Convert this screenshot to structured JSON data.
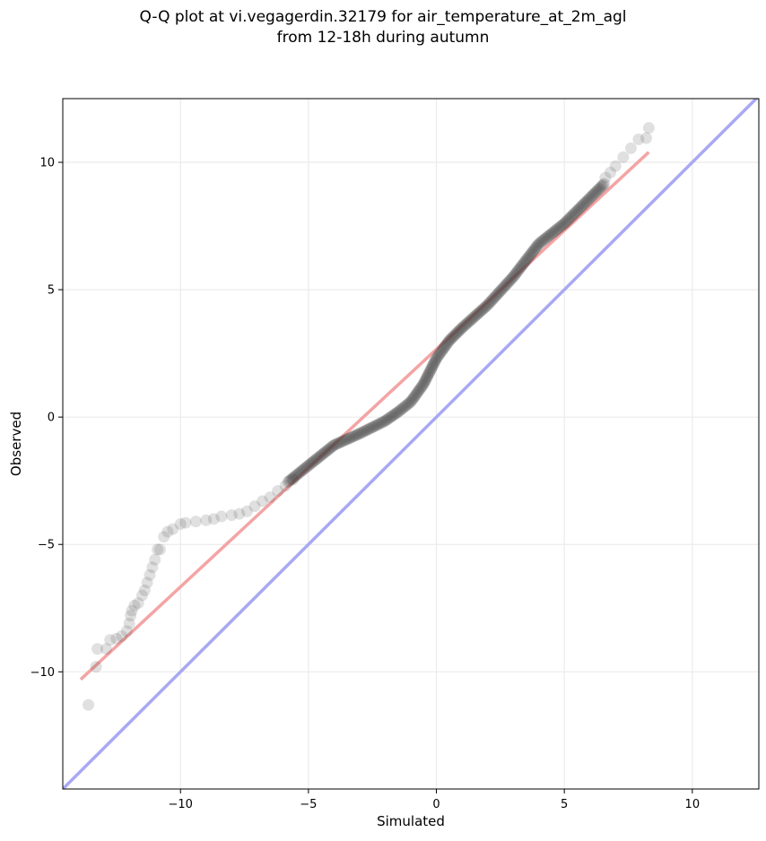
{
  "chart_data": {
    "type": "scatter",
    "title": "Q-Q plot at vi.vegagerdin.32179 for air_temperature_at_2m_agl",
    "subtitle": "from 12-18h during autumn",
    "xlabel": "Simulated",
    "ylabel": "Observed",
    "xlim": [
      -14.6,
      12.6
    ],
    "ylim": [
      -14.6,
      12.5
    ],
    "xticks": [
      -10,
      -5,
      0,
      5,
      10
    ],
    "yticks": [
      -10,
      -5,
      0,
      5,
      10
    ],
    "xtick_labels": [
      "−10",
      "−5",
      "0",
      "5",
      "10"
    ],
    "ytick_labels": [
      "−10",
      "−5",
      "0",
      "5",
      "10"
    ],
    "grid": true,
    "legend": "none",
    "colors": {
      "points": "#404040",
      "fit_line": "#f4a4a4",
      "identity_line": "#a8a8f4",
      "grid": "#ebebeb",
      "axes": "#000000"
    },
    "quantile_points_sparse": [
      {
        "x": -13.6,
        "y": -11.3
      },
      {
        "x": -13.3,
        "y": -9.8
      },
      {
        "x": -13.25,
        "y": -9.1
      },
      {
        "x": -12.9,
        "y": -9.1
      },
      {
        "x": -12.75,
        "y": -8.75
      },
      {
        "x": -12.5,
        "y": -8.7
      },
      {
        "x": -12.3,
        "y": -8.6
      },
      {
        "x": -12.1,
        "y": -8.4
      },
      {
        "x": -12.0,
        "y": -8.1
      },
      {
        "x": -11.95,
        "y": -7.8
      },
      {
        "x": -11.9,
        "y": -7.6
      },
      {
        "x": -11.8,
        "y": -7.4
      },
      {
        "x": -11.65,
        "y": -7.3
      },
      {
        "x": -11.5,
        "y": -7.0
      },
      {
        "x": -11.4,
        "y": -6.8
      },
      {
        "x": -11.3,
        "y": -6.5
      },
      {
        "x": -11.2,
        "y": -6.2
      },
      {
        "x": -11.1,
        "y": -5.9
      },
      {
        "x": -11.0,
        "y": -5.6
      },
      {
        "x": -10.9,
        "y": -5.2
      },
      {
        "x": -10.8,
        "y": -5.2
      },
      {
        "x": -10.65,
        "y": -4.7
      },
      {
        "x": -10.5,
        "y": -4.5
      },
      {
        "x": -10.3,
        "y": -4.4
      },
      {
        "x": -10.0,
        "y": -4.2
      },
      {
        "x": -9.8,
        "y": -4.15
      },
      {
        "x": -9.4,
        "y": -4.1
      },
      {
        "x": -9.0,
        "y": -4.05
      },
      {
        "x": -8.7,
        "y": -4.0
      },
      {
        "x": -8.4,
        "y": -3.9
      },
      {
        "x": -8.0,
        "y": -3.85
      },
      {
        "x": -7.7,
        "y": -3.8
      },
      {
        "x": -7.4,
        "y": -3.7
      },
      {
        "x": -7.1,
        "y": -3.5
      },
      {
        "x": -6.8,
        "y": -3.3
      },
      {
        "x": -6.5,
        "y": -3.15
      },
      {
        "x": -6.2,
        "y": -2.9
      },
      {
        "x": -5.9,
        "y": -2.7
      },
      {
        "x": -5.6,
        "y": -2.45
      },
      {
        "x": 6.6,
        "y": 9.4
      },
      {
        "x": 6.8,
        "y": 9.6
      },
      {
        "x": 7.0,
        "y": 9.85
      },
      {
        "x": 7.3,
        "y": 10.2
      },
      {
        "x": 7.6,
        "y": 10.55
      },
      {
        "x": 7.9,
        "y": 10.9
      },
      {
        "x": 8.2,
        "y": 10.95
      },
      {
        "x": 8.3,
        "y": 11.35
      }
    ],
    "quantile_curve_dense": [
      {
        "x": -5.8,
        "y": -2.55
      },
      {
        "x": -5.0,
        "y": -1.9
      },
      {
        "x": -4.0,
        "y": -1.1
      },
      {
        "x": -3.0,
        "y": -0.65
      },
      {
        "x": -2.0,
        "y": -0.15
      },
      {
        "x": -1.5,
        "y": 0.2
      },
      {
        "x": -1.0,
        "y": 0.6
      },
      {
        "x": -0.5,
        "y": 1.3
      },
      {
        "x": 0.0,
        "y": 2.3
      },
      {
        "x": 0.5,
        "y": 3.0
      },
      {
        "x": 1.0,
        "y": 3.5
      },
      {
        "x": 2.0,
        "y": 4.4
      },
      {
        "x": 3.0,
        "y": 5.5
      },
      {
        "x": 4.0,
        "y": 6.8
      },
      {
        "x": 5.0,
        "y": 7.6
      },
      {
        "x": 6.0,
        "y": 8.6
      },
      {
        "x": 6.6,
        "y": 9.2
      }
    ],
    "fit_line": {
      "x": [
        -13.9,
        8.3
      ],
      "y": [
        -10.3,
        10.4
      ]
    },
    "identity_line": {
      "x": [
        -14.6,
        12.6
      ],
      "y": [
        -14.6,
        12.6
      ]
    }
  }
}
